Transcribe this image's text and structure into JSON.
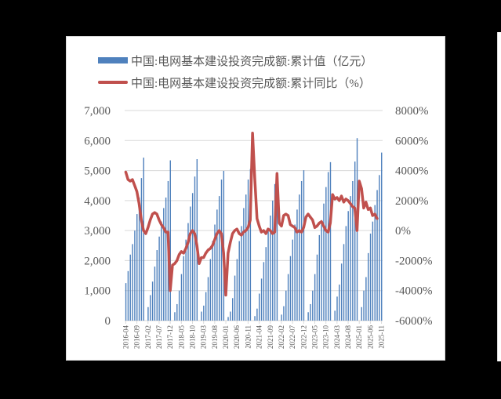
{
  "legend": {
    "bar_label": "中国:电网基本建设投资完成额:累计值（亿元）",
    "line_label": "中国:电网基本建设投资完成额:累计同比（%）"
  },
  "colors": {
    "bar": "#4f81bd",
    "line": "#c0504d",
    "grid": "#d9d9d9",
    "text": "#595959"
  },
  "chart_data": {
    "type": "bar+line",
    "title": "",
    "xlabel": "",
    "ylabel": "",
    "y_left": {
      "ticks": [
        "0",
        "1,000",
        "2,000",
        "3,000",
        "4,000",
        "5,000",
        "6,000",
        "7,000"
      ],
      "ylim": [
        0,
        7000
      ]
    },
    "y_right": {
      "ticks": [
        "-6000%",
        "-4000%",
        "-2000%",
        "0%",
        "2000%",
        "4000%",
        "6000%",
        "8000%"
      ],
      "ylim": [
        -6000,
        8000
      ]
    },
    "x_tick_labels": [
      "2016-04",
      "2016-09",
      "2017-02",
      "2017-07",
      "2017-12",
      "2018-05",
      "2018-10",
      "2019-03",
      "2019-08",
      "2020-01",
      "2020-06",
      "2020-11",
      "2021-04",
      "2021-09",
      "2022-02",
      "2022-07",
      "2022-12",
      "2023-05",
      "2023-10",
      "2024-03",
      "2024-08",
      "2025-01",
      "2025-06",
      "2025-11"
    ],
    "x_start": "2016-04",
    "x_end": "2025-11",
    "grid": true,
    "legend_position": "top",
    "series": [
      {
        "name": "中国:电网基本建设投资完成额:累计值（亿元）",
        "type": "bar",
        "axis": "left",
        "note": "monthly cumulative values, January absent (null), approximate readings",
        "values": [
          1250,
          1650,
          2200,
          2550,
          3000,
          3550,
          4100,
          4750,
          5430,
          null,
          450,
          850,
          1300,
          1800,
          2350,
          2800,
          3300,
          3750,
          4100,
          4650,
          5340,
          null,
          280,
          550,
          1000,
          1550,
          2150,
          2700,
          3250,
          3800,
          4250,
          4800,
          5380,
          null,
          300,
          500,
          950,
          1450,
          2050,
          2650,
          3200,
          3700,
          4150,
          4700,
          4990,
          null,
          120,
          300,
          750,
          1500,
          2050,
          2650,
          3150,
          3750,
          4200,
          4700,
          5050,
          null,
          150,
          400,
          900,
          1400,
          1950,
          2450,
          3000,
          3500,
          4000,
          4550,
          4950,
          null,
          200,
          480,
          1000,
          1550,
          2150,
          2700,
          3200,
          3700,
          4200,
          4650,
          5010,
          null,
          280,
          550,
          1000,
          1550,
          2200,
          2850,
          3350,
          3900,
          4450,
          4950,
          5280,
          null,
          330,
          800,
          1200,
          1900,
          2550,
          3150,
          3650,
          4150,
          4650,
          5300,
          6080,
          null,
          450,
          1000,
          1450,
          2250,
          2900,
          3300,
          3850,
          4350,
          4850,
          5600
        ]
      },
      {
        "name": "中国:电网基本建设投资完成额:累计同比（%）",
        "type": "line",
        "axis": "right",
        "note": "approximate readings",
        "values": [
          3900,
          3400,
          3300,
          3400,
          3000,
          2600,
          1800,
          700,
          0,
          -200,
          200,
          700,
          1100,
          1200,
          1100,
          700,
          400,
          200,
          -100,
          -100,
          -4000,
          -2300,
          -2200,
          -2000,
          -1600,
          -1400,
          -1500,
          -1200,
          -800,
          -200,
          0,
          -200,
          -1000,
          -2200,
          -1800,
          -1800,
          -1500,
          -1300,
          -1200,
          -1000,
          -600,
          -200,
          0,
          -200,
          -1500,
          -4300,
          -1500,
          -800,
          -200,
          0,
          100,
          -200,
          -300,
          -100,
          0,
          200,
          700,
          6500,
          3500,
          800,
          300,
          -100,
          0,
          -200,
          100,
          0,
          -200,
          -100,
          3800,
          500,
          300,
          1000,
          1100,
          1000,
          400,
          300,
          200,
          -100,
          0,
          -100,
          200,
          900,
          1100,
          900,
          700,
          200,
          300,
          500,
          600,
          300,
          0,
          -100,
          500,
          2400,
          2100,
          2200,
          2000,
          2300,
          1900,
          2100,
          2000,
          1800,
          1600,
          1500,
          0,
          3300,
          2800,
          1500,
          1900,
          1400,
          1500,
          1000,
          1100,
          800
        ]
      }
    ]
  }
}
